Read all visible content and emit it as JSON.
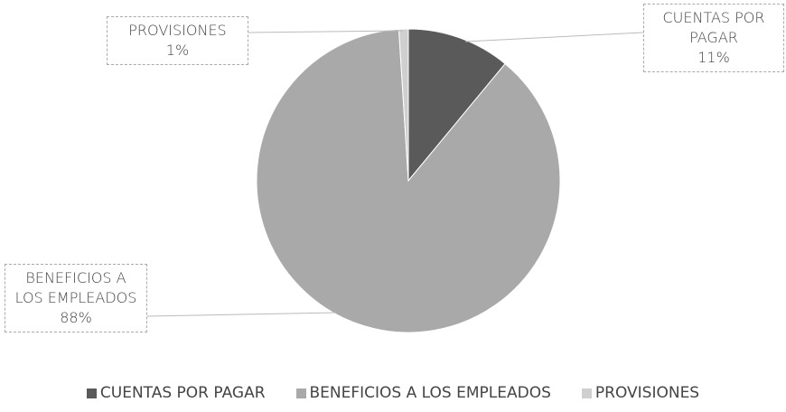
{
  "chart_data": {
    "type": "pie",
    "categories": [
      "CUENTAS POR PAGAR",
      "BENEFICIOS A LOS EMPLEADOS",
      "PROVISIONES"
    ],
    "values": [
      11,
      88,
      1
    ],
    "value_labels": [
      "11%",
      "88%",
      "1%"
    ],
    "colors": [
      "#5a5a5a",
      "#a9a9a9",
      "#cfcfcf"
    ],
    "legend": "bottom"
  }
}
